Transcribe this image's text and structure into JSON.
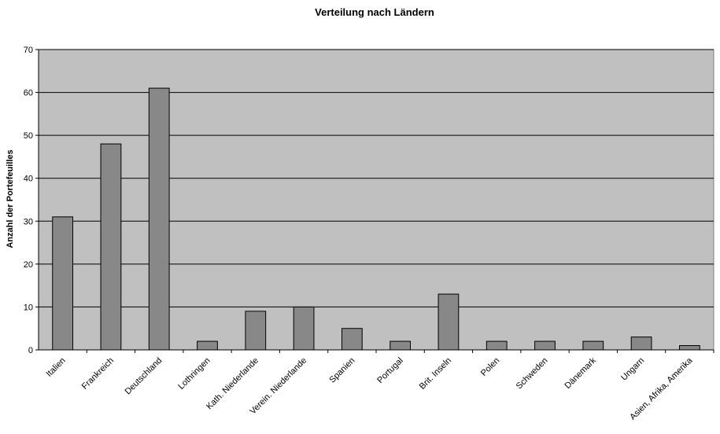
{
  "chart_data": {
    "type": "bar",
    "title": "Verteilung nach Ländern",
    "xlabel": "",
    "ylabel": "Anzahl der Portefeuilles",
    "ylim": [
      0,
      70
    ],
    "yticks": [
      0,
      10,
      20,
      30,
      40,
      50,
      60,
      70
    ],
    "grid": true,
    "legend": "none",
    "categories": [
      "Italien",
      "Frankreich",
      "Deutschland",
      "Lothringen",
      "Kath. Niederlande",
      "Verein. Niederlande",
      "Spanien",
      "Portugal",
      "Brit. Inseln",
      "Polen",
      "Schweden",
      "Dänemark",
      "Ungarn",
      "Asien, Afrika, Amerika"
    ],
    "values": [
      31,
      48,
      61,
      2,
      9,
      10,
      5,
      2,
      13,
      2,
      2,
      2,
      3,
      1
    ],
    "colors": {
      "plot_background": "#c0c0c0",
      "bar_fill": "#888888",
      "bar_stroke": "#000000",
      "gridline": "#000000"
    }
  }
}
